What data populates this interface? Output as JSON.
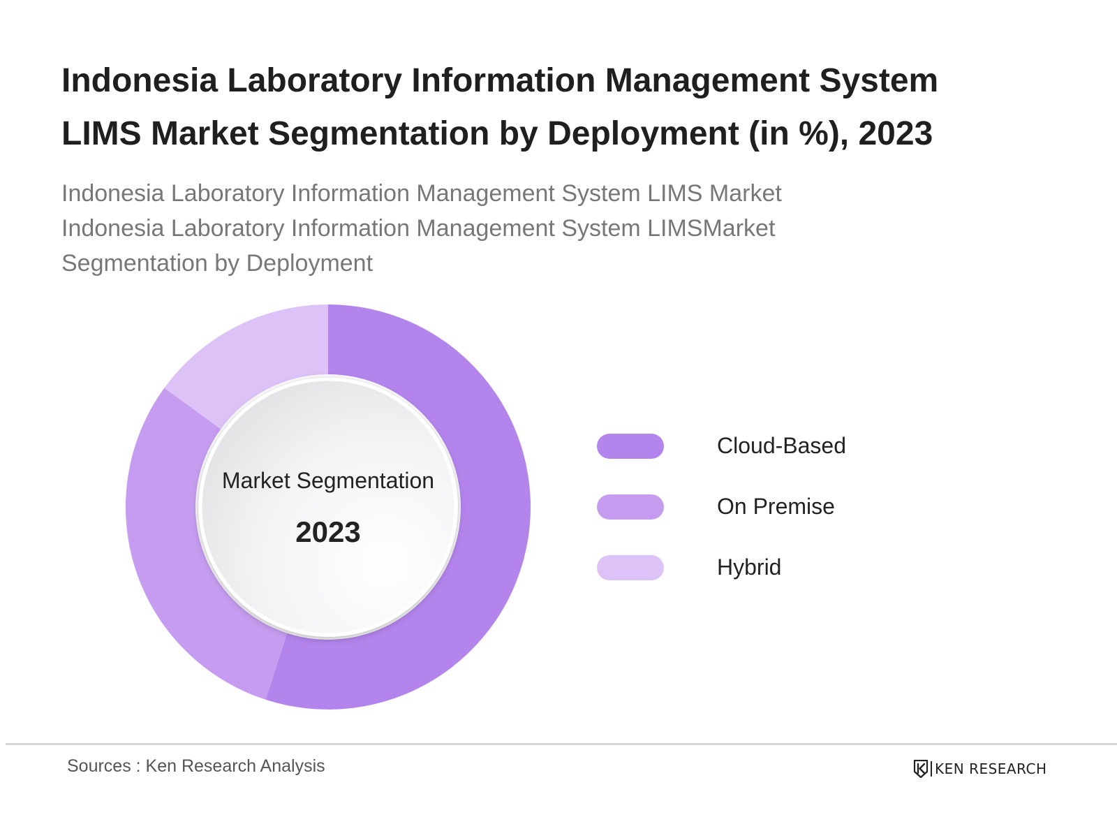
{
  "title_lines": [
    "Indonesia Laboratory Information Management System",
    "LIMS Market Segmentation by Deployment (in %), 2023"
  ],
  "subtitle_lines": [
    "Indonesia Laboratory Information Management System LIMS Market",
    "Indonesia Laboratory Information Management System LIMSMarket",
    "Segmentation by Deployment"
  ],
  "center": {
    "label": "Market Segmentation",
    "year": "2023"
  },
  "chart_data": {
    "type": "pie",
    "variant": "donut",
    "categories": [
      "Cloud-Based",
      "On Premise",
      "Hybrid"
    ],
    "values": [
      55,
      30,
      15
    ],
    "colors": [
      "#b384ec",
      "#c59cef",
      "#dcc2f7"
    ],
    "legend_position": "right"
  },
  "legend": {
    "items": [
      {
        "label": "Cloud-Based",
        "color": "#b384ec"
      },
      {
        "label": "On Premise",
        "color": "#c59cef"
      },
      {
        "label": "Hybrid",
        "color": "#dcc2f7"
      }
    ]
  },
  "footer": {
    "source": "Sources : Ken Research Analysis",
    "brand": "KEN RESEARCH",
    "brand_icon": "ken-research-logo-icon"
  }
}
